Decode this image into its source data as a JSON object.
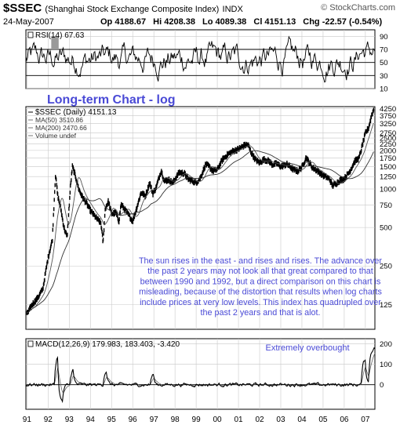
{
  "header": {
    "symbol": "$SSEC",
    "name": "(Shanghai Stock Exchange Composite Index)",
    "exchange": "INDX",
    "brand": "© StockCharts.com",
    "date": "24-May-2007",
    "quote": {
      "open": "Op 4188.67",
      "high": "Hi 4208.38",
      "low": "Lo 4089.38",
      "close": "Cl 4151.13",
      "change": "Chg -22.57 (-0.54%)"
    }
  },
  "chart_data": [
    {
      "type": "line",
      "panel": "rsi",
      "title": "RSI(14) 67.63",
      "ylim": [
        10,
        100
      ],
      "y_ticks": [
        "90",
        "70",
        "50",
        "30",
        "10"
      ],
      "reference_lines": [
        70,
        50,
        30
      ],
      "grid": true
    },
    {
      "type": "line",
      "panel": "price",
      "scale": "log",
      "title": "Long-term Chart - log",
      "legend": [
        "$SSEC (Daily) 4151.13",
        "MA(50) 3510.86",
        "MA(200) 2470.66",
        "Volume undef"
      ],
      "legend_position": "top-left",
      "y_ticks": [
        "4250",
        "3750",
        "3250",
        "2750",
        "2500",
        "2250",
        "2000",
        "1750",
        "1500",
        "1250",
        "1000",
        "750",
        "500",
        "250",
        "125"
      ],
      "ylim": [
        80,
        4400
      ],
      "x_ticks": [
        "91",
        "92",
        "93",
        "94",
        "95",
        "96",
        "97",
        "98",
        "99",
        "00",
        "01",
        "02",
        "03",
        "04",
        "05",
        "06",
        "07"
      ],
      "x_ticks_num": [
        1991,
        1992,
        1993,
        1994,
        1995,
        1996,
        1997,
        1998,
        1999,
        2000,
        2001,
        2002,
        2003,
        2004,
        2005,
        2006,
        2007
      ],
      "xlim": [
        1990.95,
        2007.45
      ],
      "series": [
        {
          "values_x": [
            1991.0,
            1991.25,
            1991.5,
            1991.75,
            1992.0,
            1992.2,
            1992.35,
            1992.45,
            1992.6,
            1992.75,
            1992.9,
            1993.05,
            1993.15,
            1993.3,
            1993.45,
            1993.6,
            1993.8,
            1994.0,
            1994.25,
            1994.5,
            1994.6,
            1994.7,
            1994.85,
            1995.0,
            1995.2,
            1995.35,
            1995.45,
            1995.6,
            1995.8,
            1996.0,
            1996.2,
            1996.4,
            1996.6,
            1996.8,
            1996.95,
            1997.1,
            1997.35,
            1997.5,
            1997.7,
            1997.9,
            1998.2,
            1998.45,
            1998.6,
            1998.8,
            1999.0,
            1999.2,
            1999.45,
            1999.6,
            1999.8,
            2000.0,
            2000.25,
            2000.5,
            2000.75,
            2001.0,
            2001.25,
            2001.45,
            2001.6,
            2001.8,
            2002.0,
            2002.2,
            2002.45,
            2002.6,
            2002.8,
            2003.0,
            2003.3,
            2003.6,
            2003.8,
            2004.0,
            2004.2,
            2004.5,
            2004.75,
            2005.0,
            2005.3,
            2005.45,
            2005.6,
            2005.8,
            2006.0,
            2006.25,
            2006.5,
            2006.7,
            2006.9,
            2007.0,
            2007.15,
            2007.3,
            2007.39
          ],
          "values": [
            105,
            125,
            140,
            165,
            290,
            400,
            1300,
            900,
            700,
            500,
            420,
            1000,
            1500,
            1250,
            1000,
            880,
            780,
            680,
            600,
            540,
            380,
            700,
            800,
            640,
            650,
            560,
            760,
            700,
            630,
            560,
            720,
            940,
            880,
            1120,
            920,
            1020,
            1400,
            1150,
            1180,
            1120,
            1350,
            1320,
            1200,
            1160,
            1120,
            1220,
            1560,
            1500,
            1380,
            1420,
            1700,
            1870,
            1980,
            2050,
            2180,
            2230,
            1930,
            1700,
            1600,
            1700,
            1650,
            1550,
            1580,
            1500,
            1560,
            1420,
            1380,
            1480,
            1760,
            1470,
            1380,
            1280,
            1200,
            1060,
            1100,
            1170,
            1200,
            1360,
            1650,
            1740,
            2340,
            2720,
            3000,
            3800,
            4151
          ]
        }
      ]
    },
    {
      "type": "line",
      "panel": "macd",
      "title": "MACD(12,26,9) 179.983, 183.403, -3.420",
      "annotation": "Extremely overbought",
      "y_ticks": [
        "200",
        "100",
        "0"
      ],
      "ylim": [
        -120,
        225
      ]
    }
  ],
  "annotation_text": "The sun rises in the east - and rises and rises. The advance over the past 2 years may not look all that great compared to that between 1990 and 1992, but a direct comparison on this chart is misleading, because of the distortion that results when log charts include prices at very low levels. This index has quadrupled over the past 2 years and that is alot.",
  "colors": {
    "price": "#000000",
    "ma": "#555555",
    "annotation": "#4a4ad6",
    "grid": "#c8c8c8",
    "rsi_overbought": "#9a9a9a"
  }
}
